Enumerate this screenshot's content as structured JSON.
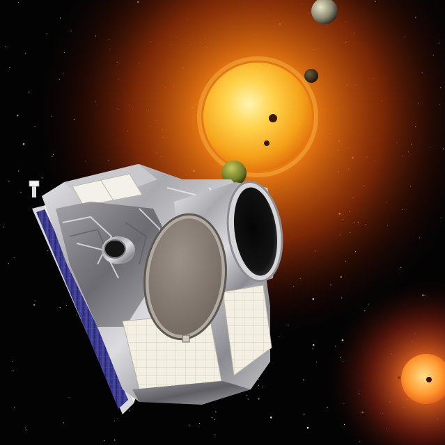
{
  "scene": {
    "subject": "space-telescope",
    "background": "starfield",
    "colors": {
      "space": "#020203",
      "sun_core": "#fff2a0",
      "sun_mid": "#f6b21c",
      "sun_edge": "#d9560a",
      "red_star": "#ff8a2a",
      "foil": "#b9b9bd",
      "solar_cell": "#3a3a8e",
      "radiator": "#f1ecdf",
      "lid": "#8b8178"
    },
    "objects": [
      {
        "name": "main-sun",
        "kind": "star"
      },
      {
        "name": "red-dwarf-star",
        "kind": "star"
      },
      {
        "name": "planet-top",
        "kind": "planet"
      },
      {
        "name": "planet-right",
        "kind": "planet"
      },
      {
        "name": "planet-transit-1",
        "kind": "planet"
      },
      {
        "name": "planet-transit-2",
        "kind": "planet"
      },
      {
        "name": "planet-green",
        "kind": "planet"
      },
      {
        "name": "telescope-satellite",
        "kind": "spacecraft"
      }
    ]
  }
}
